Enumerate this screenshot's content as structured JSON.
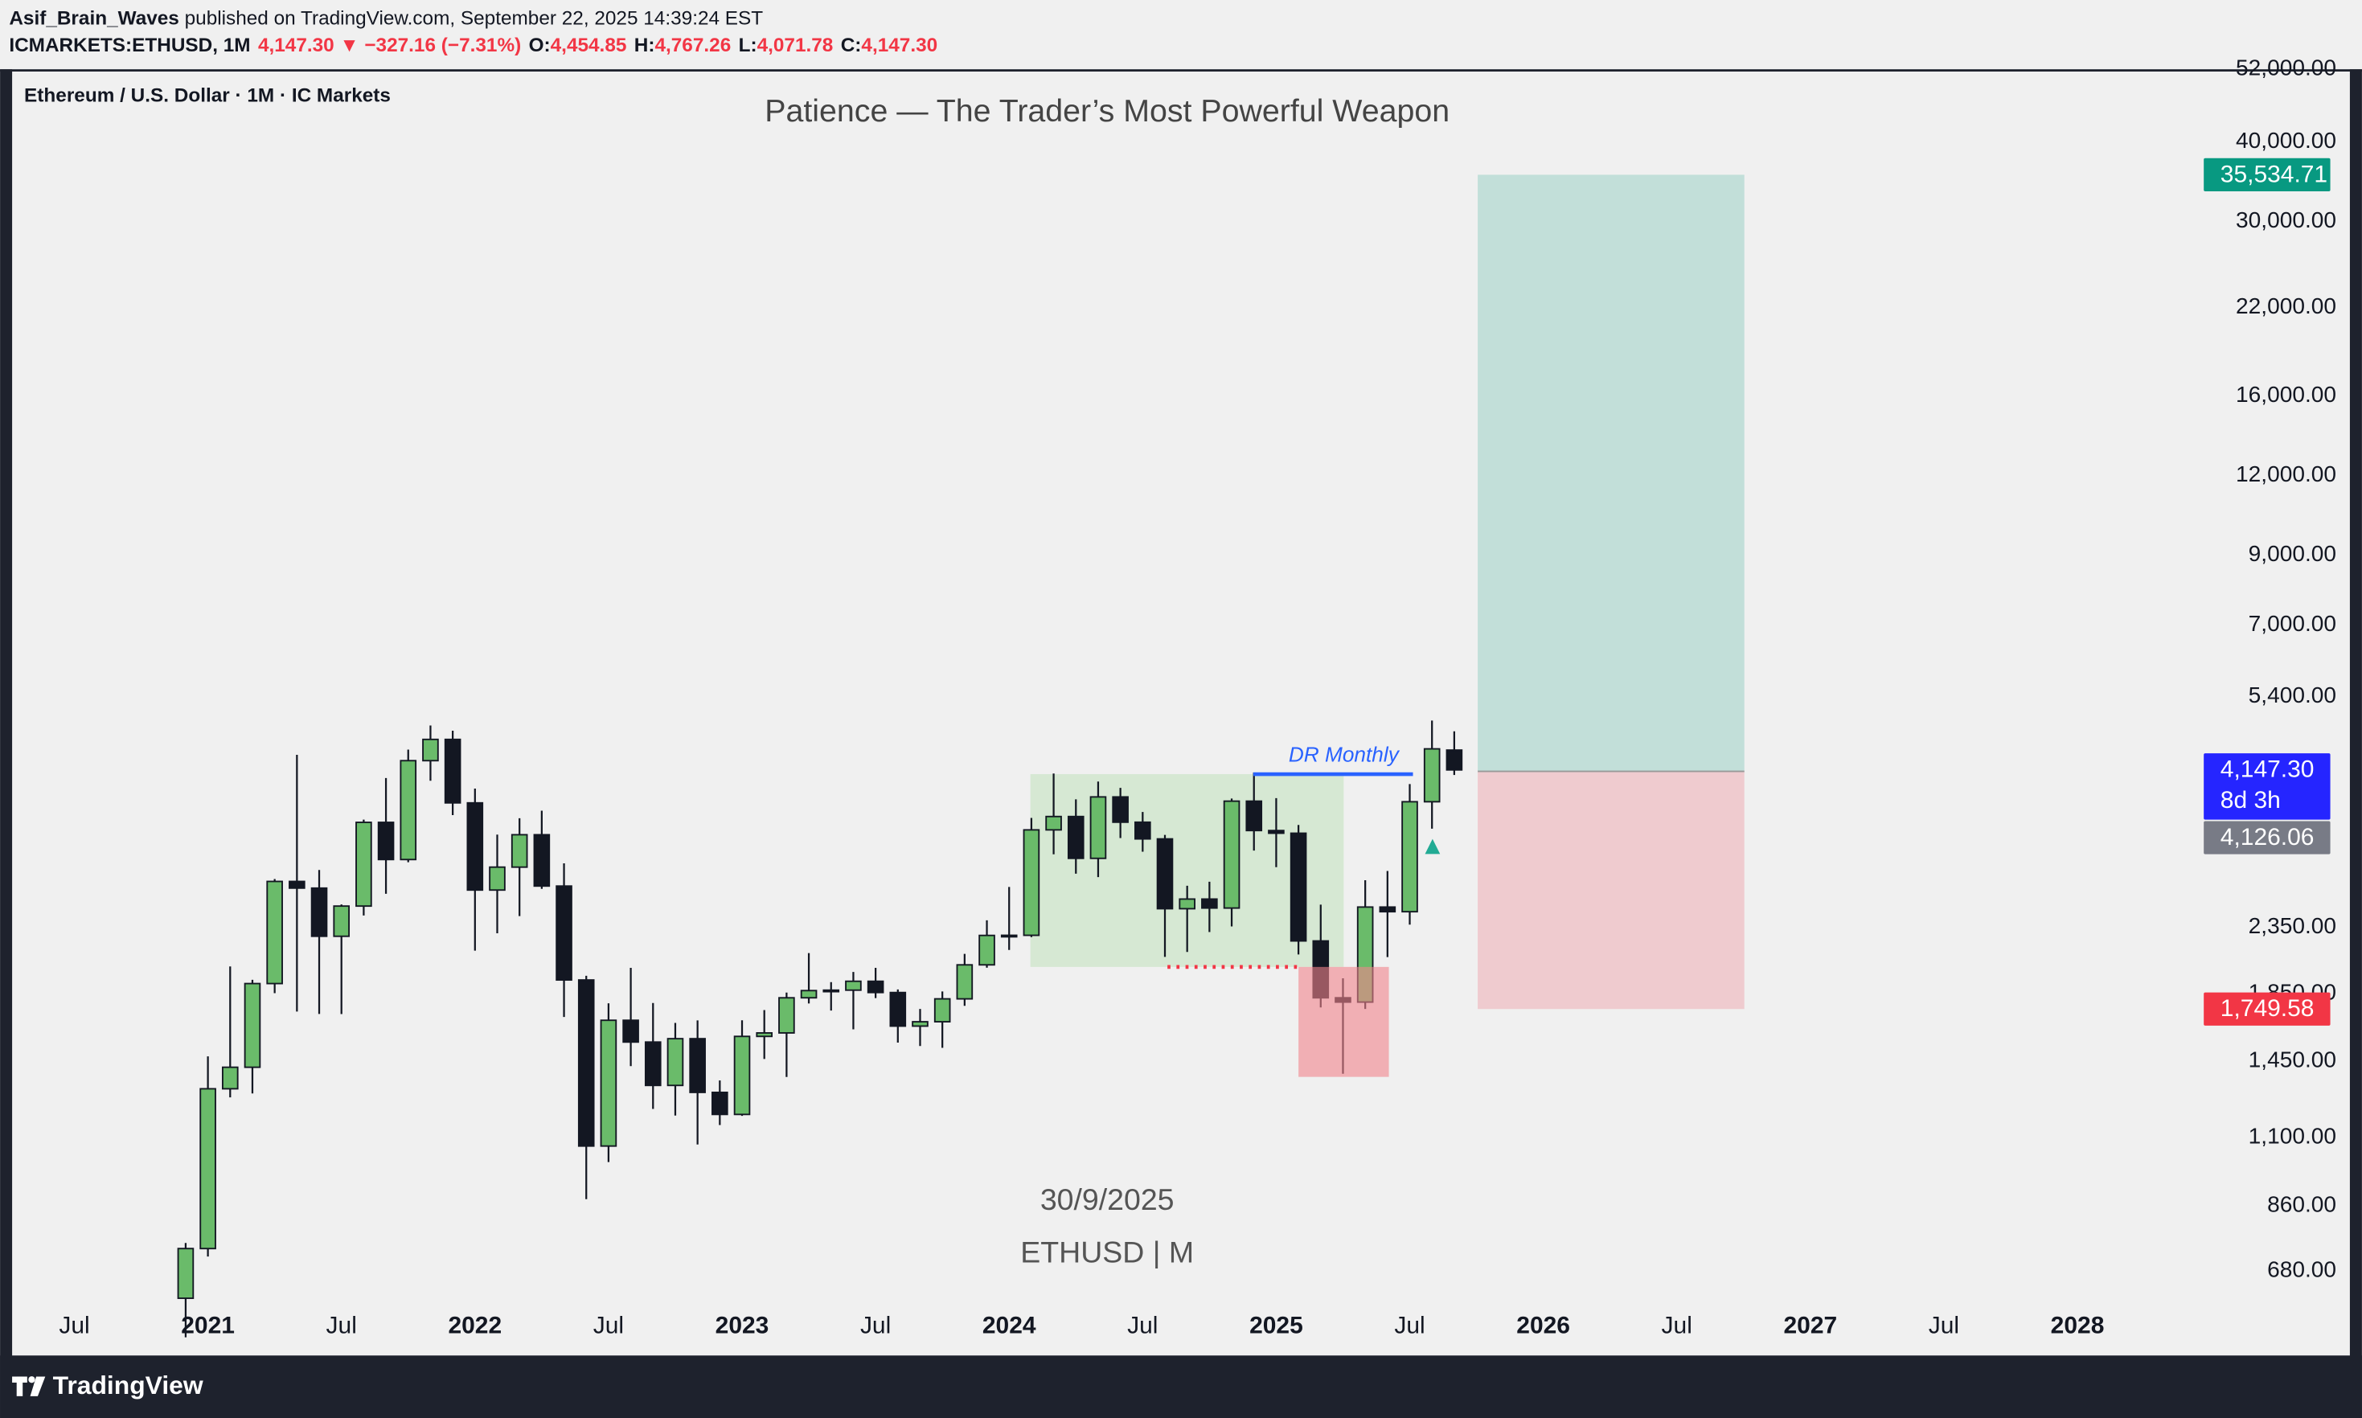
{
  "header": {
    "author": "Asif_Brain_Waves",
    "published": " published on TradingView.com, September 22, 2025 14:39:24 EST",
    "symbol": "ICMARKETS:ETHUSD, 1M",
    "change": "4,147.30 ▼ −327.16 (−7.31%)",
    "ohlc": [
      {
        "key": "O:",
        "value": "4,454.85"
      },
      {
        "key": "H:",
        "value": "4,767.26"
      },
      {
        "key": "L:",
        "value": "4,071.78"
      },
      {
        "key": "C:",
        "value": "4,147.30"
      }
    ]
  },
  "footer": {
    "brand": "TradingView"
  },
  "chart_data": {
    "type": "candlestick",
    "title": "Patience — The Trader’s Most Powerful Weapon",
    "legend": "Ethereum / U.S. Dollar · 1M · IC Markets",
    "annotations": {
      "range": "DR Monthly",
      "date": "30/9/2025",
      "symbol": "ETHUSD | M"
    },
    "up_color": "#6abb6a",
    "down_color": "#131722",
    "log_scale": true,
    "grid": false,
    "x": [
      "2020-12",
      "2021-01",
      "2021-02",
      "2021-03",
      "2021-04",
      "2021-05",
      "2021-06",
      "2021-07",
      "2021-08",
      "2021-09",
      "2021-10",
      "2021-11",
      "2021-12",
      "2022-01",
      "2022-02",
      "2022-03",
      "2022-04",
      "2022-05",
      "2022-06",
      "2022-07",
      "2022-08",
      "2022-09",
      "2022-10",
      "2022-11",
      "2022-12",
      "2023-01",
      "2023-02",
      "2023-03",
      "2023-04",
      "2023-05",
      "2023-06",
      "2023-07",
      "2023-08",
      "2023-09",
      "2023-10",
      "2023-11",
      "2023-12",
      "2024-01",
      "2024-02",
      "2024-03",
      "2024-04",
      "2024-05",
      "2024-06",
      "2024-07",
      "2024-08",
      "2024-09",
      "2024-10",
      "2024-11",
      "2024-12",
      "2025-01",
      "2025-02",
      "2025-03",
      "2025-04",
      "2025-05",
      "2025-06",
      "2025-07",
      "2025-08",
      "2025-09"
    ],
    "open": [
      616,
      737,
      1312,
      1418,
      1918,
      2773,
      2707,
      2275,
      2537,
      3432,
      3001,
      4288,
      4630,
      3682,
      2688,
      2920,
      3282,
      2727,
      1943,
      1067,
      1680,
      1553,
      1328,
      1572,
      1295,
      1196,
      1585,
      1605,
      1822,
      1870,
      1873,
      1934,
      1857,
      1645,
      1671,
      1815,
      2052,
      2282,
      2283,
      3340,
      3505,
      3014,
      3762,
      3434,
      3233,
      2513,
      2602,
      2519,
      3705,
      3332,
      3300,
      2237,
      1822,
      1794,
      2528,
      2486,
      3697,
      4454.85
    ],
    "high": [
      752,
      1475,
      2040,
      1944,
      2797,
      4380,
      2890,
      2552,
      3466,
      4027,
      4462,
      4868,
      4778,
      3877,
      3283,
      3483,
      3580,
      2960,
      1973,
      1786,
      2030,
      1788,
      1664,
      1679,
      1352,
      1680,
      1743,
      1857,
      2141,
      1928,
      2000,
      2030,
      1878,
      1750,
      1864,
      2135,
      2410,
      2718,
      3487,
      4093,
      3730,
      3977,
      3887,
      3563,
      3280,
      2730,
      2770,
      3740,
      4109,
      3745,
      3400,
      2550,
      1955,
      2785,
      2880,
      3941,
      4956,
      4767.26
    ],
    "low": [
      535,
      716,
      1272,
      1290,
      1853,
      1734,
      1719,
      1718,
      2452,
      2652,
      2972,
      3988,
      3523,
      2160,
      2300,
      2447,
      2700,
      1700,
      881,
      1007,
      1424,
      1220,
      1191,
      1073,
      1151,
      1190,
      1461,
      1369,
      1785,
      1740,
      1626,
      1820,
      1550,
      1531,
      1521,
      1770,
      2031,
      2165,
      2268,
      3058,
      2852,
      2817,
      3243,
      3087,
      2112,
      2150,
      2310,
      2357,
      3100,
      2920,
      2130,
      1760,
      1385,
      1750,
      2110,
      2373,
      3355,
      4071.78
    ],
    "close": [
      737,
      1312,
      1418,
      1918,
      2773,
      2707,
      2275,
      2537,
      3432,
      3001,
      4288,
      4630,
      3682,
      2688,
      2920,
      3282,
      2727,
      1943,
      1067,
      1680,
      1553,
      1328,
      1572,
      1295,
      1196,
      1585,
      1605,
      1822,
      1870,
      1873,
      1934,
      1857,
      1645,
      1671,
      1815,
      2052,
      2282,
      2283,
      3340,
      3505,
      3014,
      3762,
      3434,
      3233,
      2513,
      2602,
      2519,
      3705,
      3332,
      3300,
      2237,
      1822,
      1794,
      2528,
      2486,
      3697,
      4474.46,
      4147.3
    ],
    "xlim": [
      "2020-04",
      "2028-06"
    ],
    "xticks": [
      {
        "value": "2020-07",
        "label": "Jul"
      },
      {
        "value": "2021-01",
        "label": "2021"
      },
      {
        "value": "2021-07",
        "label": "Jul"
      },
      {
        "value": "2022-01",
        "label": "2022"
      },
      {
        "value": "2022-07",
        "label": "Jul"
      },
      {
        "value": "2023-01",
        "label": "2023"
      },
      {
        "value": "2023-07",
        "label": "Jul"
      },
      {
        "value": "2024-01",
        "label": "2024"
      },
      {
        "value": "2024-07",
        "label": "Jul"
      },
      {
        "value": "2025-01",
        "label": "2025"
      },
      {
        "value": "2025-07",
        "label": "Jul"
      },
      {
        "value": "2026-01",
        "label": "2026"
      },
      {
        "value": "2026-07",
        "label": "Jul"
      },
      {
        "value": "2027-01",
        "label": "2027"
      },
      {
        "value": "2027-07",
        "label": "Jul"
      },
      {
        "value": "2028-01",
        "label": "2028"
      }
    ],
    "ylim": [
      501,
      52000
    ],
    "yticks": [
      {
        "value": 680,
        "label": "680.00"
      },
      {
        "value": 860,
        "label": "860.00"
      },
      {
        "value": 1100,
        "label": "1,100.00"
      },
      {
        "value": 1450,
        "label": "1,450.00"
      },
      {
        "value": 1850,
        "label": "1,850.00"
      },
      {
        "value": 2350,
        "label": "2,350.00"
      },
      {
        "value": 5400,
        "label": "5,400.00"
      },
      {
        "value": 7000,
        "label": "7,000.00"
      },
      {
        "value": 9000,
        "label": "9,000.00"
      },
      {
        "value": 12000,
        "label": "12,000.00"
      },
      {
        "value": 16000,
        "label": "16,000.00"
      },
      {
        "value": 22000,
        "label": "22,000.00"
      },
      {
        "value": 30000,
        "label": "30,000.00"
      },
      {
        "value": 40000,
        "label": "40,000.00"
      },
      {
        "value": 52000,
        "label": "52,000.00"
      }
    ],
    "price_labels": [
      {
        "value": 35534.71,
        "label": "35,534.71",
        "color": "#089981"
      },
      {
        "value": 4147.3,
        "label": "4,147.30",
        "color": "#2525ff"
      },
      {
        "value": 4126.06,
        "label": "4,126.06",
        "color": "#787b86"
      },
      {
        "value": 1749.58,
        "label": "1,749.58",
        "color": "#f23645"
      }
    ],
    "countdown": "8d 3h"
  }
}
